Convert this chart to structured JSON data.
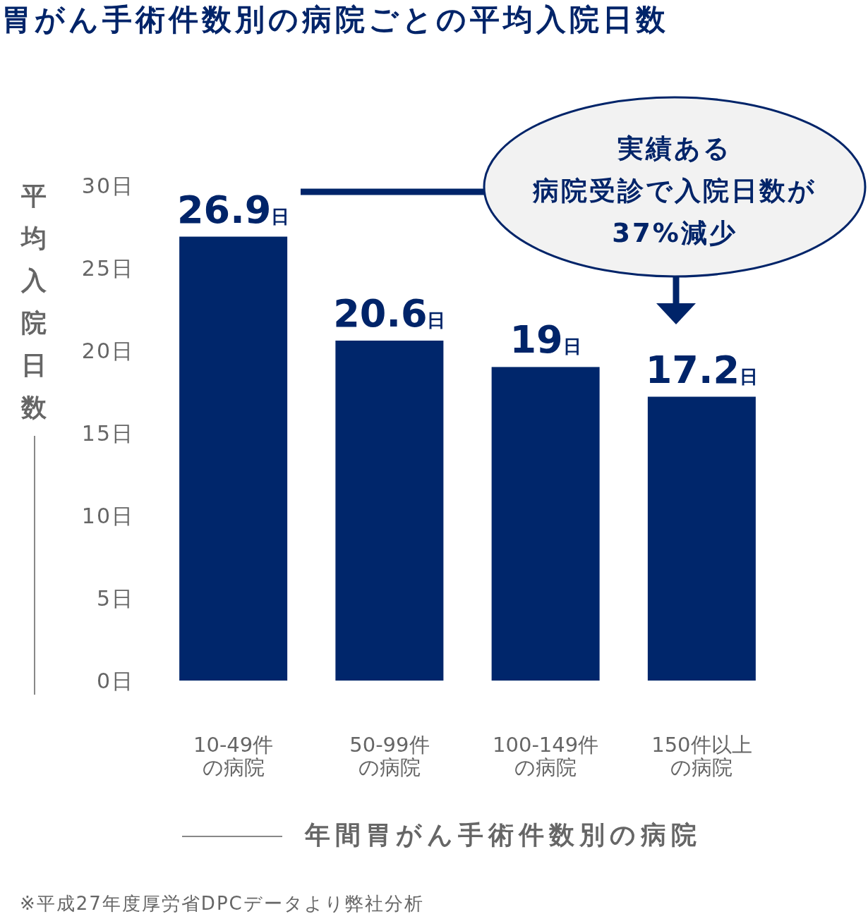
{
  "chart_data": {
    "type": "bar",
    "title": "胃がん手術件数別の病院ごとの平均入院日数",
    "ylabel": "平均入院日数",
    "xlabel": "年間胃がん手術件数別の病院",
    "categories": [
      "10-49件の病院",
      "50-99件の病院",
      "100-149件の病院",
      "150件以上の病院"
    ],
    "values": [
      26.9,
      20.6,
      19,
      17.2
    ],
    "value_labels": [
      "26.9日",
      "20.6日",
      "19日",
      "17.2日"
    ],
    "color": "#00266b",
    "ylim": [
      0,
      30
    ],
    "yticks": [
      {
        "value": 0,
        "label": "0日"
      },
      {
        "value": 5,
        "label": "5日"
      },
      {
        "value": 10,
        "label": "10日"
      },
      {
        "value": 15,
        "label": "15日"
      },
      {
        "value": 20,
        "label": "20日"
      },
      {
        "value": 25,
        "label": "25日"
      },
      {
        "value": 30,
        "label": "30日"
      }
    ],
    "grid": false,
    "annotations": [
      "実績ある",
      "病院受診で入院日数が",
      "37%減少",
      "※平成27年度厚労省DPCデータより弊社分析"
    ]
  }
}
